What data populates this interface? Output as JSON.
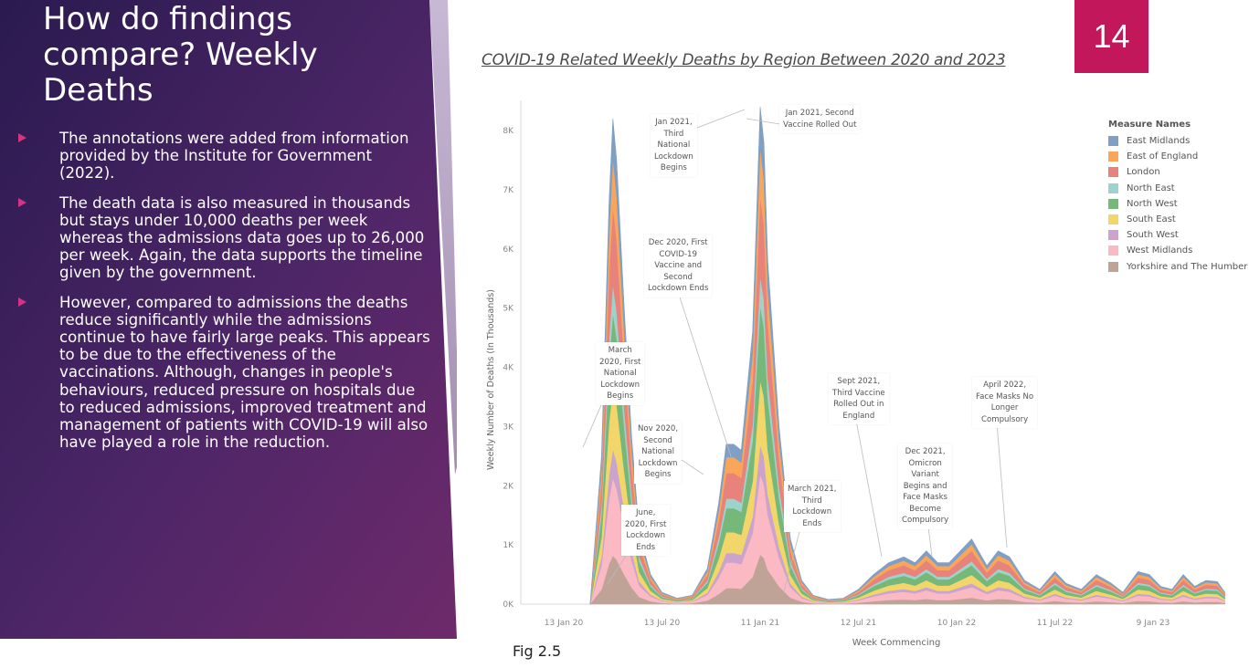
{
  "slide": {
    "title": "How do findings compare? Weekly Deaths",
    "page_number": "14",
    "bullets": [
      "The annotations were added from information provided by the Institute for Government (2022).",
      "The death data is also measured in thousands but stays under 10,000 deaths per week whereas the admissions data goes up to 26,000 per week. Again, the data supports the timeline given by the government.",
      "However, compared to admissions the deaths reduce significantly while the admissions continue to have fairly large peaks. This appears to be due to the effectiveness of the vaccinations. Although, changes in people's behaviours, reduced pressure on hospitals due to reduced admissions, improved treatment and management of patients with COVID-19 will also have played a role in the reduction."
    ],
    "figure_caption": "Fig 2.5",
    "colors": {
      "panel_dark": "#2a1a4f",
      "panel_mid": "#4e2668",
      "panel_light": "#6e2a6a",
      "accent": "#c2185b",
      "bullet": "#d63384"
    }
  },
  "chart_data": {
    "type": "area",
    "stacked": true,
    "title": "COVID-19 Related Weekly Deaths by Region Between 2020 and 2023",
    "xlabel": "Week Commencing",
    "ylabel": "Weekly Number of Deaths (In Thousands)",
    "ylim": [
      0,
      8500
    ],
    "yticks": [
      0,
      1000,
      2000,
      3000,
      4000,
      5000,
      6000,
      7000,
      8000
    ],
    "ytick_labels": [
      "0K",
      "1K",
      "2K",
      "3K",
      "4K",
      "5K",
      "6K",
      "7K",
      "8K"
    ],
    "xticks": [
      "2020-01-13",
      "2020-07-13",
      "2021-01-11",
      "2021-07-12",
      "2022-01-10",
      "2022-07-11",
      "2023-01-09"
    ],
    "xtick_labels": [
      "13 Jan 20",
      "13 Jul 20",
      "11 Jan 21",
      "12 Jul 21",
      "10 Jan 22",
      "11 Jul 22",
      "9 Jan 23"
    ],
    "grid": false,
    "legend_title": "Measure Names",
    "legend_position": "right",
    "series_order": [
      "Yorkshire and The Humber",
      "West Midlands",
      "South West",
      "South East",
      "North West",
      "North East",
      "London",
      "East of England",
      "East Midlands"
    ],
    "series": [
      {
        "name": "East Midlands",
        "color": "#7f9fc4",
        "share": 0.08
      },
      {
        "name": "East of England",
        "color": "#f9a65a",
        "share": 0.1
      },
      {
        "name": "London",
        "color": "#e8837b",
        "share": 0.16
      },
      {
        "name": "North East",
        "color": "#9ed2cc",
        "share": 0.06
      },
      {
        "name": "North West",
        "color": "#76b87a",
        "share": 0.15
      },
      {
        "name": "South East",
        "color": "#f2d66a",
        "share": 0.13
      },
      {
        "name": "South West",
        "color": "#caa4cc",
        "share": 0.06
      },
      {
        "name": "West Midlands",
        "color": "#fbb9c4",
        "share": 0.16
      },
      {
        "name": "Yorkshire and The Humber",
        "color": "#bfa396",
        "share": 0.1
      }
    ],
    "total_series": {
      "dates": [
        "2020-03-02",
        "2020-03-23",
        "2020-04-06",
        "2020-04-13",
        "2020-04-20",
        "2020-05-04",
        "2020-05-18",
        "2020-06-01",
        "2020-06-22",
        "2020-07-13",
        "2020-08-10",
        "2020-09-07",
        "2020-10-05",
        "2020-10-26",
        "2020-11-09",
        "2020-11-23",
        "2020-12-07",
        "2020-12-28",
        "2021-01-11",
        "2021-01-18",
        "2021-01-25",
        "2021-02-15",
        "2021-03-08",
        "2021-03-29",
        "2021-04-19",
        "2021-05-17",
        "2021-06-14",
        "2021-07-12",
        "2021-08-09",
        "2021-09-06",
        "2021-10-04",
        "2021-10-25",
        "2021-11-15",
        "2021-12-06",
        "2021-12-27",
        "2022-01-17",
        "2022-02-07",
        "2022-03-07",
        "2022-03-28",
        "2022-04-18",
        "2022-05-16",
        "2022-06-13",
        "2022-07-11",
        "2022-08-01",
        "2022-08-29",
        "2022-09-26",
        "2022-10-24",
        "2022-11-14",
        "2022-12-12",
        "2023-01-02",
        "2023-01-23",
        "2023-02-13",
        "2023-03-06",
        "2023-03-27",
        "2023-04-17",
        "2023-05-08",
        "2023-05-22"
      ],
      "values": [
        0,
        2500,
        6800,
        8200,
        7500,
        5000,
        2800,
        1200,
        500,
        200,
        100,
        150,
        600,
        1700,
        2700,
        2700,
        2600,
        4600,
        8400,
        7800,
        5800,
        3000,
        1100,
        400,
        150,
        80,
        100,
        250,
        500,
        700,
        800,
        700,
        900,
        700,
        700,
        900,
        1100,
        650,
        900,
        800,
        400,
        250,
        550,
        350,
        250,
        500,
        350,
        200,
        550,
        500,
        300,
        250,
        500,
        300,
        400,
        380,
        200
      ]
    },
    "annotations": [
      {
        "text": "Jan 2021,\nThird\nNational\nLockdown\nBegins",
        "date": "2021-01-04"
      },
      {
        "text": "Jan 2021, Second\nVaccine Rolled Out",
        "date": "2021-01-11"
      },
      {
        "text": "Dec 2020, First\nCOVID-19\nVaccine and\nSecond\nLockdown Ends",
        "date": "2020-12-07"
      },
      {
        "text": "March\n2020, First\nNational\nLockdown\nBegins",
        "date": "2020-03-23"
      },
      {
        "text": "Nov 2020,\nSecond\nNational\nLockdown\nBegins",
        "date": "2020-11-02"
      },
      {
        "text": "June,\n2020, First\nLockdown\nEnds",
        "date": "2020-06-15"
      },
      {
        "text": "March 2021,\nThird\nLockdown\nEnds",
        "date": "2021-03-29"
      },
      {
        "text": "Sept 2021,\nThird Vaccine\nRolled Out in\nEngland",
        "date": "2021-09-13"
      },
      {
        "text": "Dec 2021,\nOmicron\nVariant\nBegins and\nFace Masks\nBecome\nCompulsory",
        "date": "2021-12-06"
      },
      {
        "text": "April 2022,\nFace Masks No\nLonger\nCompulsory",
        "date": "2022-04-04"
      }
    ]
  }
}
